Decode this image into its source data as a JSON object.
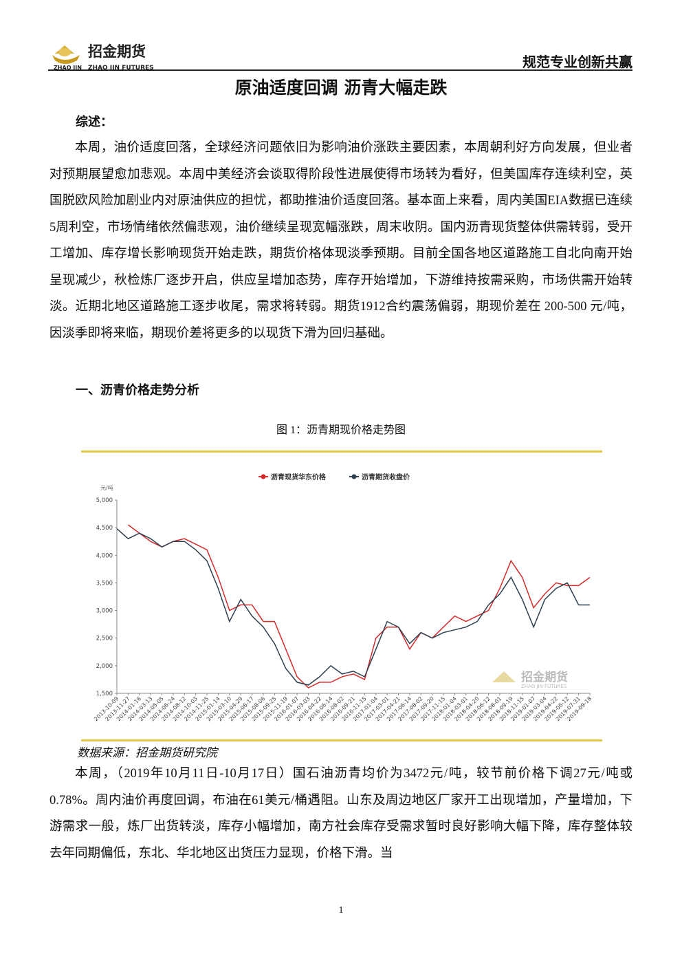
{
  "header": {
    "logo_text": "招金期货",
    "logo_small": "ZHAO JIN",
    "logo_en": "ZHAO JIN FUTURES",
    "slogan": "规范专业创新共赢"
  },
  "title": "原油适度回调 沥青大幅走跌",
  "summary_heading": "综述：",
  "summary": "本周，油价适度回落，全球经济问题依旧为影响油价涨跌主要因素，本周朝利好方向发展，但业者对预期展望愈加悲观。本周中美经济会谈取得阶段性进展使得市场转为看好，但美国库存连续利空，英国脱欧风险加剧业内对原油供应的担忧，都助推油价适度回落。基本面上来看，周内美国EIA数据已连续5周利空，市场情绪依然偏悲观，油价继续呈现宽幅涨跌，周末收阴。国内沥青现货整体供需转弱，受开工增加、库存增长影响现货开始走跌，期货价格体现淡季预期。目前全国各地区道路施工自北向南开始呈现减少，秋检炼厂逐步开启，供应呈增加态势，库存开始增加，下游维持按需采购，市场供需开始转淡。近期北地区道路施工逐步收尾，需求将转弱。期货1912合约震荡偏弱，期现价差在 200-500 元/吨，因淡季即将来临，期现价差将更多的以现货下滑为回归基础。",
  "section1": "一、沥青价格走势分析",
  "figure_caption": "图 1：沥青期现价格走势图",
  "chart_data": {
    "type": "line",
    "y_unit": "元/吨",
    "watermark": "招金期货",
    "watermark_en": "ZHAO JIN FUTURES",
    "categories": [
      "2013-10-09",
      "2013-11-27",
      "2014-01-16",
      "2014-03-13",
      "2014-05-05",
      "2014-06-24",
      "2014-08-12",
      "2014-10-03",
      "2014-11-25",
      "2015-01-14",
      "2015-03-10",
      "2015-04-29",
      "2015-06-17",
      "2015-08-06",
      "2015-09-25",
      "2015-11-19",
      "2016-01-07",
      "2016-03-03",
      "2016-04-22",
      "2016-06-14",
      "2016-08-02",
      "2016-09-21",
      "2016-11-15",
      "2017-01-04",
      "2017-03-01",
      "2017-04-21",
      "2017-06-14",
      "2017-08-02",
      "2017-09-20",
      "2017-11-15",
      "2018-01-04",
      "2018-03-01",
      "2018-04-20",
      "2018-06-12",
      "2018-08-01",
      "2018-09-19",
      "2018-11-15",
      "2019-01-07",
      "2019-03-04",
      "2019-04-22",
      "2019-06-12",
      "2019-07-31",
      "2019-09-18"
    ],
    "series": [
      {
        "name": "沥青现货华东价格",
        "color": "#d42a2a",
        "values": [
          null,
          4550,
          4400,
          4250,
          4150,
          4250,
          4300,
          4200,
          4100,
          3600,
          3000,
          3100,
          3100,
          2800,
          2800,
          2300,
          1800,
          1600,
          1700,
          1700,
          1800,
          1850,
          1750,
          2500,
          2700,
          2700,
          2300,
          2600,
          2500,
          2700,
          2900,
          2800,
          2900,
          3000,
          3400,
          3900,
          3600,
          3050,
          3300,
          3500,
          3450,
          3450,
          3600
        ]
      },
      {
        "name": "沥青期货收盘价",
        "color": "#2e3f50",
        "values": [
          4480,
          4300,
          4400,
          4300,
          4150,
          4250,
          4250,
          4100,
          3900,
          3400,
          2800,
          3200,
          2900,
          2700,
          2400,
          1950,
          1700,
          1650,
          1800,
          2000,
          1850,
          1900,
          1800,
          2300,
          2800,
          2700,
          2400,
          2600,
          2500,
          2600,
          2650,
          2700,
          2800,
          3100,
          3300,
          3600,
          3200,
          2700,
          3200,
          3400,
          3500,
          3100,
          3100
        ]
      }
    ],
    "ylim": [
      1500,
      5000
    ],
    "yticks": [
      {
        "value": 1500,
        "label": "1,500"
      },
      {
        "value": 2000,
        "label": "2,000"
      },
      {
        "value": 2500,
        "label": "2,500"
      },
      {
        "value": 3000,
        "label": "3,000"
      },
      {
        "value": 3500,
        "label": "3,500"
      },
      {
        "value": 4000,
        "label": "4,000"
      },
      {
        "value": 4500,
        "label": "4,500"
      },
      {
        "value": 5000,
        "label": "5,000"
      }
    ],
    "grid": false
  },
  "source": "数据来源：招金期货研究院",
  "paragraph2": "本周，（2019年10月11日-10月17日）国石油沥青均价为3472元/吨，较节前价格下调27元/吨或0.78%。周内油价再度回调，布油在61美元/桶遇阻。山东及周边地区厂家开工出现增加，产量增加，下游需求一般，炼厂出货转淡，库存小幅增加，南方社会库存受需求暂时良好影响大幅下降，库存整体较去年同期偏低，东北、华北地区出货压力显现，价格下滑。当",
  "page_number": "1"
}
